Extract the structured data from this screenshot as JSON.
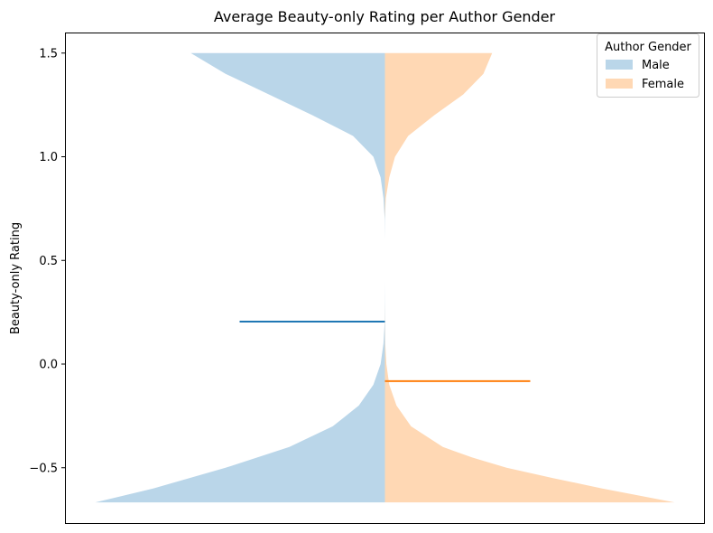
{
  "chart_data": {
    "type": "violin",
    "title": "Average Beauty-only Rating per Author Gender",
    "xlabel": "",
    "ylabel": "Beauty-only Rating",
    "ylim": [
      -0.78,
      1.6
    ],
    "y_ticks": [
      {
        "value": 1.5,
        "label": "1.5"
      },
      {
        "value": 1.0,
        "label": "1.0"
      },
      {
        "value": 0.5,
        "label": "0.5"
      },
      {
        "value": 0.0,
        "label": "0.0"
      },
      {
        "value": -0.5,
        "label": "−0.5"
      }
    ],
    "grid": false,
    "legend": {
      "title": "Author Gender",
      "placement": "top-right"
    },
    "series": [
      {
        "name": "Male",
        "side": "left",
        "color": "#bad6e9",
        "mean_line_color": "#1f77b4",
        "mean": 0.205,
        "density": [
          [
            -0.667,
            1.0
          ],
          [
            -0.6,
            0.8
          ],
          [
            -0.5,
            0.55
          ],
          [
            -0.4,
            0.33
          ],
          [
            -0.3,
            0.18
          ],
          [
            -0.2,
            0.09
          ],
          [
            -0.1,
            0.04
          ],
          [
            0.0,
            0.015
          ],
          [
            0.1,
            0.005
          ],
          [
            0.2,
            0.001
          ],
          [
            0.4,
            0.0
          ],
          [
            0.6,
            0.0
          ],
          [
            0.7,
            0.001
          ],
          [
            0.8,
            0.005
          ],
          [
            0.9,
            0.015
          ],
          [
            1.0,
            0.04
          ],
          [
            1.1,
            0.11
          ],
          [
            1.2,
            0.25
          ],
          [
            1.3,
            0.4
          ],
          [
            1.4,
            0.55
          ],
          [
            1.5,
            0.67
          ]
        ]
      },
      {
        "name": "Female",
        "side": "right",
        "color": "#ffd8b4",
        "mean_line_color": "#ff7f0e",
        "mean": -0.082,
        "density": [
          [
            -0.667,
            1.0
          ],
          [
            -0.6,
            0.75
          ],
          [
            -0.55,
            0.58
          ],
          [
            -0.5,
            0.42
          ],
          [
            -0.45,
            0.3
          ],
          [
            -0.4,
            0.2
          ],
          [
            -0.3,
            0.09
          ],
          [
            -0.2,
            0.04
          ],
          [
            -0.1,
            0.015
          ],
          [
            0.0,
            0.005
          ],
          [
            0.1,
            0.001
          ],
          [
            0.3,
            0.0
          ],
          [
            0.7,
            0.0
          ],
          [
            0.8,
            0.003
          ],
          [
            0.9,
            0.015
          ],
          [
            1.0,
            0.035
          ],
          [
            1.1,
            0.08
          ],
          [
            1.2,
            0.17
          ],
          [
            1.3,
            0.27
          ],
          [
            1.4,
            0.34
          ],
          [
            1.5,
            0.37
          ]
        ]
      }
    ]
  }
}
